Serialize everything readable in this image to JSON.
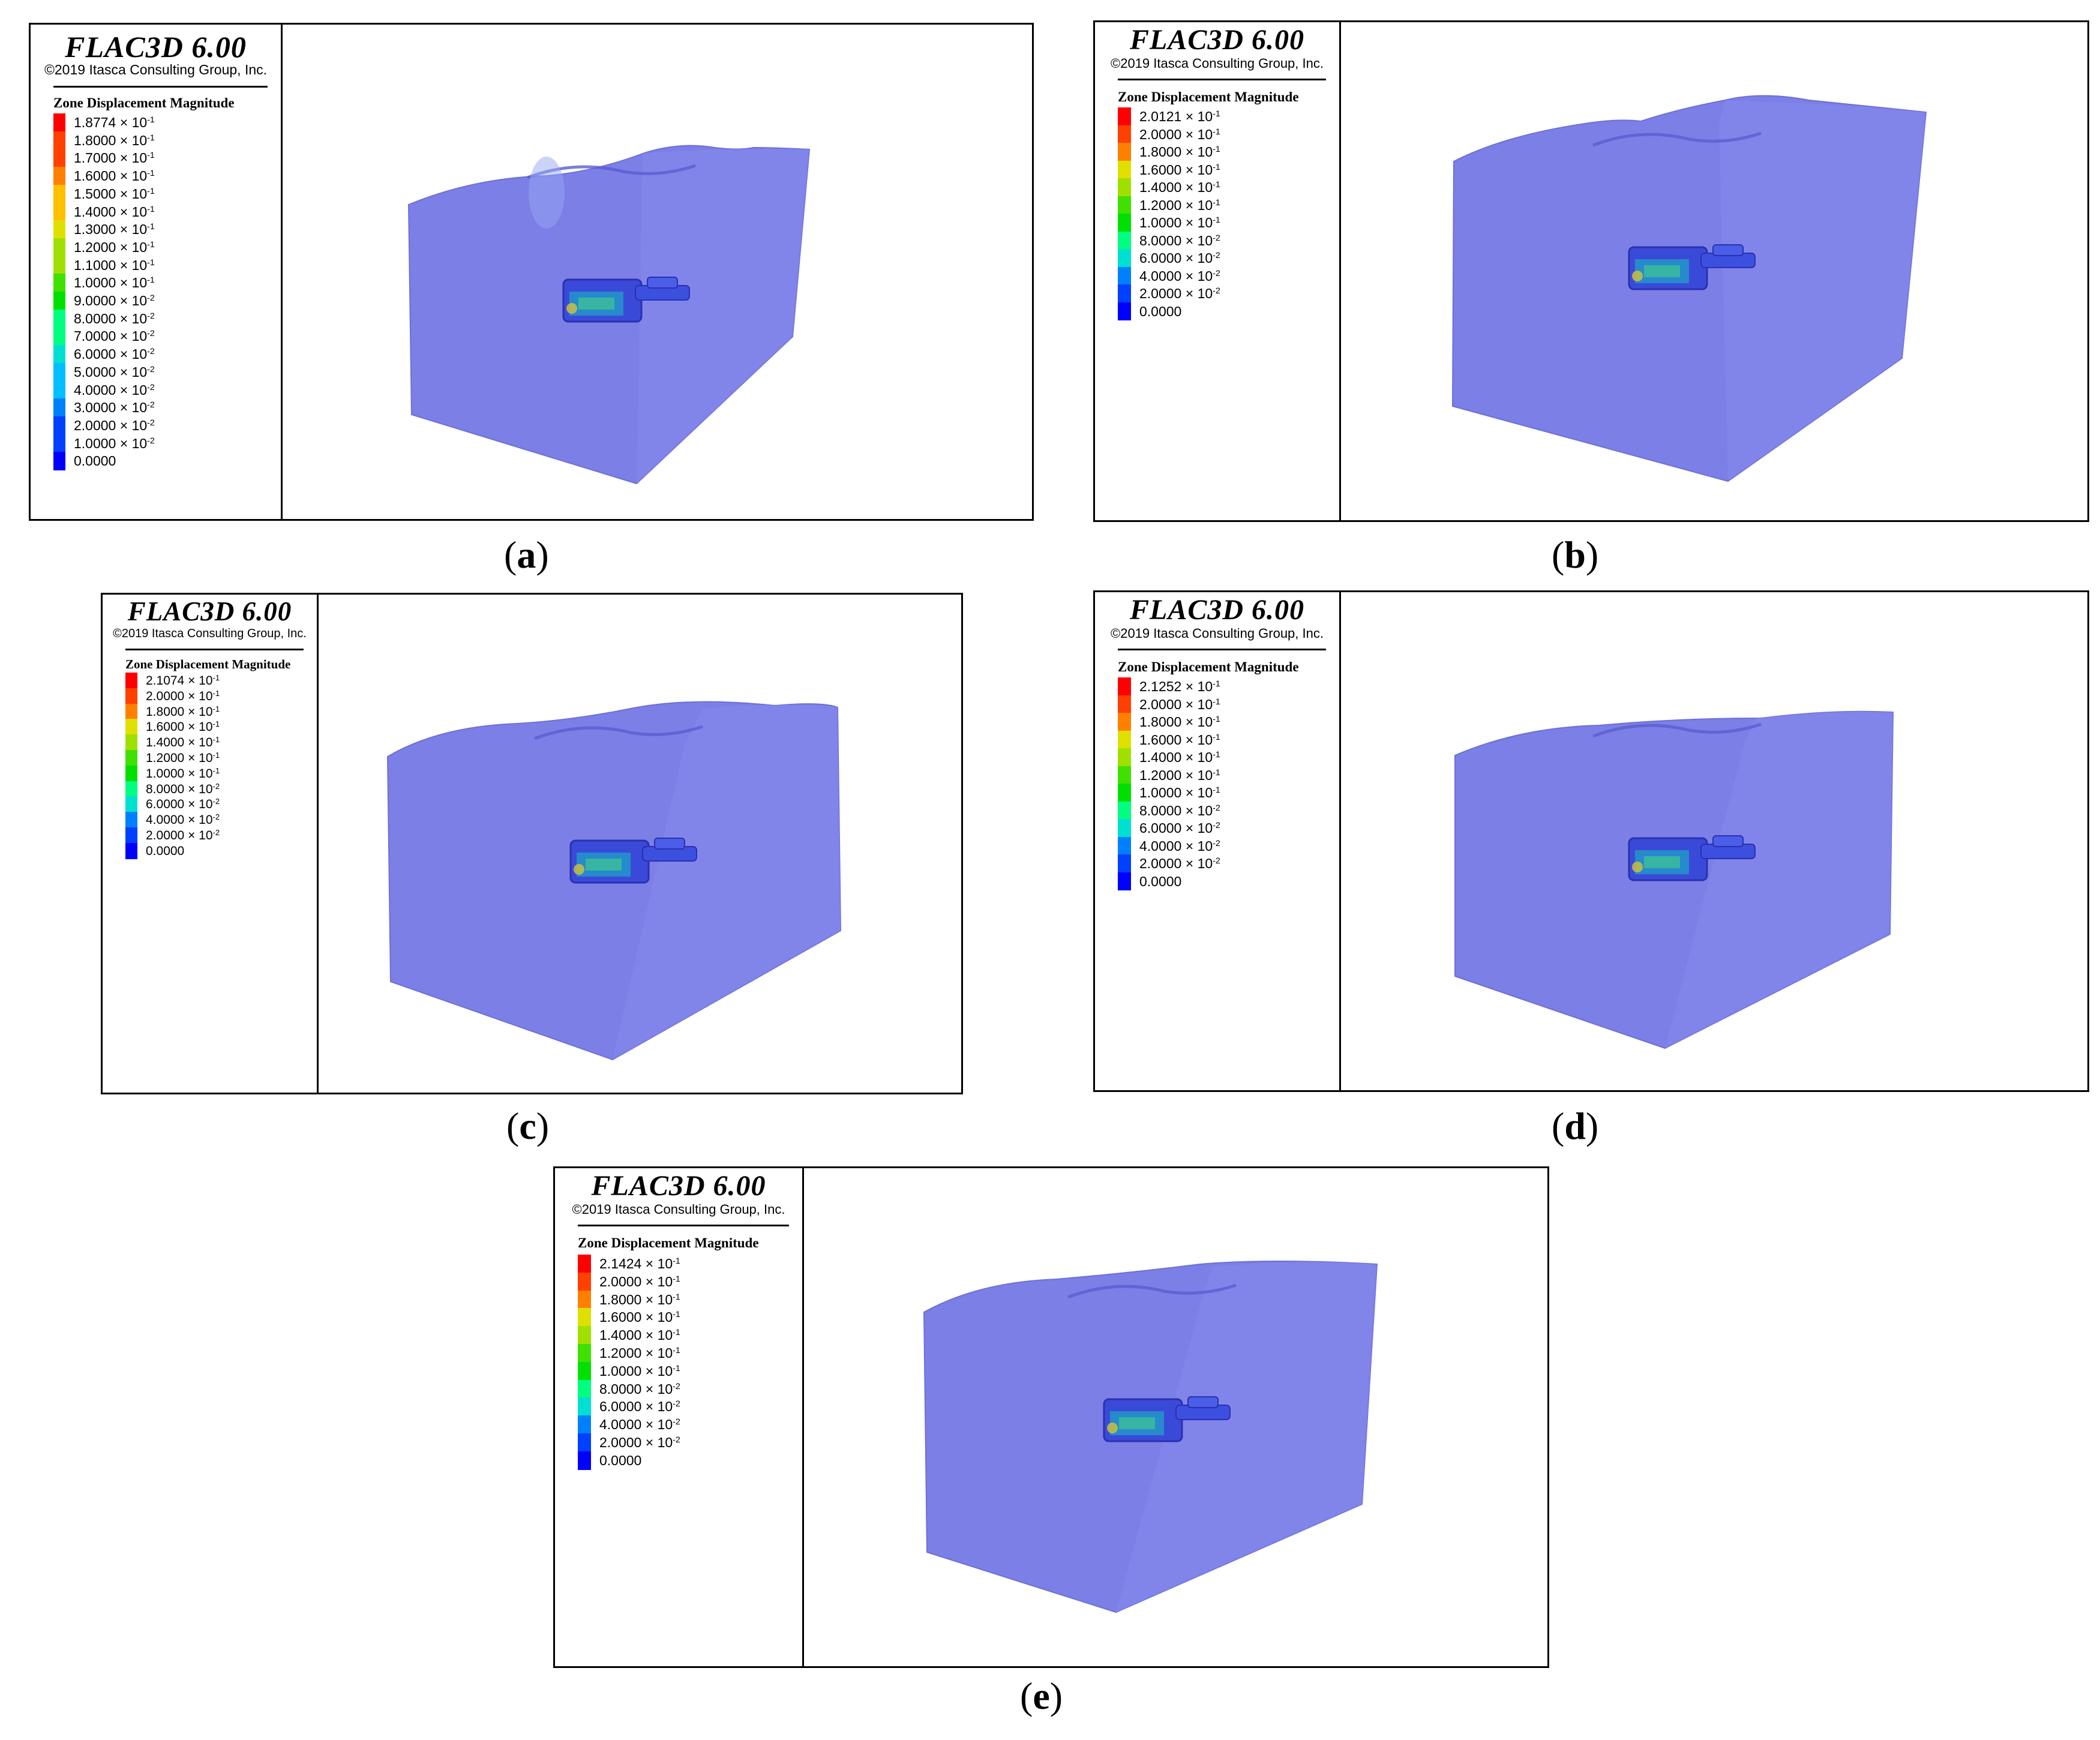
{
  "header": {
    "title": "FLAC3D 6.00",
    "copyright": "©2019 Itasca Consulting Group, Inc.",
    "legend_title": "Zone Displacement Magnitude"
  },
  "colors": {
    "model": "#7b7fe6",
    "model_edge": "#6c70d8",
    "model_side_light": "#8a8ef0",
    "scale": [
      "#0000ff",
      "#0040ff",
      "#0080ff",
      "#00bfff",
      "#00e0d0",
      "#00ff80",
      "#00e000",
      "#40e000",
      "#a0e000",
      "#e0e000",
      "#ffc000",
      "#ff8000",
      "#ff4000",
      "#ff0000"
    ]
  },
  "panels": [
    {
      "id": "a",
      "caption": {
        "open": "(",
        "letter": "a",
        "close": ")"
      },
      "legend": [
        {
          "m": "1.8774",
          "e": "-1"
        },
        {
          "m": "1.8000",
          "e": "-1"
        },
        {
          "m": "1.7000",
          "e": "-1"
        },
        {
          "m": "1.6000",
          "e": "-1"
        },
        {
          "m": "1.5000",
          "e": "-1"
        },
        {
          "m": "1.4000",
          "e": "-1"
        },
        {
          "m": "1.3000",
          "e": "-1"
        },
        {
          "m": "1.2000",
          "e": "-1"
        },
        {
          "m": "1.1000",
          "e": "-1"
        },
        {
          "m": "1.0000",
          "e": "-1"
        },
        {
          "m": "9.0000",
          "e": "-2"
        },
        {
          "m": "8.0000",
          "e": "-2"
        },
        {
          "m": "7.0000",
          "e": "-2"
        },
        {
          "m": "6.0000",
          "e": "-2"
        },
        {
          "m": "5.0000",
          "e": "-2"
        },
        {
          "m": "4.0000",
          "e": "-2"
        },
        {
          "m": "3.0000",
          "e": "-2"
        },
        {
          "m": "2.0000",
          "e": "-2"
        },
        {
          "m": "1.0000",
          "e": "-2"
        },
        {
          "m": "0.0000",
          "e": ""
        }
      ]
    },
    {
      "id": "b",
      "caption": {
        "open": "(",
        "letter": "b",
        "close": ")"
      },
      "legend": [
        {
          "m": "2.0121",
          "e": "-1"
        },
        {
          "m": "2.0000",
          "e": "-1"
        },
        {
          "m": "1.8000",
          "e": "-1"
        },
        {
          "m": "1.6000",
          "e": "-1"
        },
        {
          "m": "1.4000",
          "e": "-1"
        },
        {
          "m": "1.2000",
          "e": "-1"
        },
        {
          "m": "1.0000",
          "e": "-1"
        },
        {
          "m": "8.0000",
          "e": "-2"
        },
        {
          "m": "6.0000",
          "e": "-2"
        },
        {
          "m": "4.0000",
          "e": "-2"
        },
        {
          "m": "2.0000",
          "e": "-2"
        },
        {
          "m": "0.0000",
          "e": ""
        }
      ]
    },
    {
      "id": "c",
      "caption": {
        "open": "(",
        "letter": "c",
        "close": ")"
      },
      "legend": [
        {
          "m": "2.1074",
          "e": "-1"
        },
        {
          "m": "2.0000",
          "e": "-1"
        },
        {
          "m": "1.8000",
          "e": "-1"
        },
        {
          "m": "1.6000",
          "e": "-1"
        },
        {
          "m": "1.4000",
          "e": "-1"
        },
        {
          "m": "1.2000",
          "e": "-1"
        },
        {
          "m": "1.0000",
          "e": "-1"
        },
        {
          "m": "8.0000",
          "e": "-2"
        },
        {
          "m": "6.0000",
          "e": "-2"
        },
        {
          "m": "4.0000",
          "e": "-2"
        },
        {
          "m": "2.0000",
          "e": "-2"
        },
        {
          "m": "0.0000",
          "e": ""
        }
      ]
    },
    {
      "id": "d",
      "caption": {
        "open": "(",
        "letter": "d",
        "close": ")"
      },
      "legend": [
        {
          "m": "2.1252",
          "e": "-1"
        },
        {
          "m": "2.0000",
          "e": "-1"
        },
        {
          "m": "1.8000",
          "e": "-1"
        },
        {
          "m": "1.6000",
          "e": "-1"
        },
        {
          "m": "1.4000",
          "e": "-1"
        },
        {
          "m": "1.2000",
          "e": "-1"
        },
        {
          "m": "1.0000",
          "e": "-1"
        },
        {
          "m": "8.0000",
          "e": "-2"
        },
        {
          "m": "6.0000",
          "e": "-2"
        },
        {
          "m": "4.0000",
          "e": "-2"
        },
        {
          "m": "2.0000",
          "e": "-2"
        },
        {
          "m": "0.0000",
          "e": ""
        }
      ]
    },
    {
      "id": "e",
      "caption": {
        "open": "(",
        "letter": "e",
        "close": ")"
      },
      "legend": [
        {
          "m": "2.1424",
          "e": "-1"
        },
        {
          "m": "2.0000",
          "e": "-1"
        },
        {
          "m": "1.8000",
          "e": "-1"
        },
        {
          "m": "1.6000",
          "e": "-1"
        },
        {
          "m": "1.4000",
          "e": "-1"
        },
        {
          "m": "1.2000",
          "e": "-1"
        },
        {
          "m": "1.0000",
          "e": "-1"
        },
        {
          "m": "8.0000",
          "e": "-2"
        },
        {
          "m": "6.0000",
          "e": "-2"
        },
        {
          "m": "4.0000",
          "e": "-2"
        },
        {
          "m": "2.0000",
          "e": "-2"
        },
        {
          "m": "0.0000",
          "e": ""
        }
      ]
    }
  ]
}
